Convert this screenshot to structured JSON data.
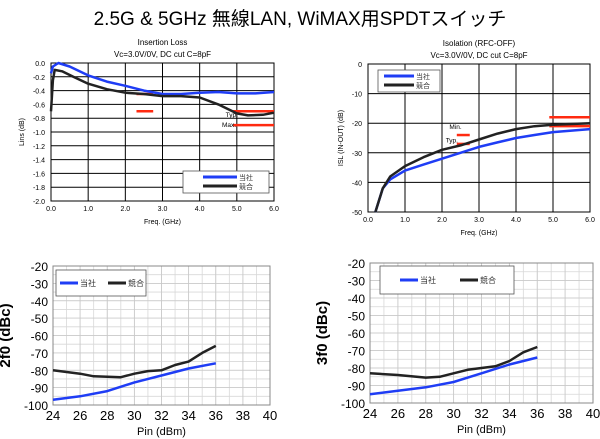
{
  "page_title": "2.5G & 5GHz 無線LAN, WiMAX用SPDTスイッチ",
  "chart_data": [
    {
      "type": "line",
      "title": "Insertion Loss",
      "subtitle": "Vc=3.0V/0V, DC cut C=8pF",
      "xlabel": "Freq. (GHz)",
      "ylabel": "Lins (dB)",
      "xlim": [
        0,
        6
      ],
      "ylim": [
        -2,
        0
      ],
      "xticks": [
        0,
        1,
        2,
        3,
        4,
        5,
        6
      ],
      "xtick_labels": [
        "0.0",
        "1.0",
        "2.0",
        "3.0",
        "4.0",
        "5.0",
        "6.0"
      ],
      "yticks": [
        0,
        -0.2,
        -0.4,
        -0.6,
        -0.8,
        -1,
        -1.2,
        -1.4,
        -1.6,
        -1.8,
        -2
      ],
      "ytick_labels": [
        "0.0",
        "-0.2",
        "-0.4",
        "-0.6",
        "-0.8",
        "-1.0",
        "-1.2",
        "-1.4",
        "-1.6",
        "-1.8",
        "-2.0"
      ],
      "grid": true,
      "legend": "bottom-right",
      "series": [
        {
          "name": "当社",
          "color": "#1f3df5",
          "x": [
            0,
            0.05,
            0.2,
            0.5,
            1,
            1.5,
            2,
            2.5,
            3,
            3.5,
            4,
            4.5,
            5,
            5.5,
            6
          ],
          "y": [
            -0.15,
            -0.05,
            0,
            -0.05,
            -0.18,
            -0.27,
            -0.33,
            -0.4,
            -0.45,
            -0.45,
            -0.43,
            -0.42,
            -0.44,
            -0.44,
            -0.42
          ]
        },
        {
          "name": "競合",
          "color": "#222222",
          "x": [
            0,
            0.05,
            0.1,
            0.3,
            0.6,
            1,
            1.5,
            2,
            2.5,
            3,
            3.5,
            4,
            4.5,
            5,
            5.3,
            5.7,
            6
          ],
          "y": [
            -0.7,
            -0.25,
            -0.1,
            -0.12,
            -0.2,
            -0.3,
            -0.38,
            -0.43,
            -0.45,
            -0.48,
            -0.48,
            -0.5,
            -0.6,
            -0.73,
            -0.76,
            -0.75,
            -0.72
          ]
        }
      ],
      "spec_lines": [
        {
          "x": [
            2.3,
            2.75
          ],
          "y": -0.45
        },
        {
          "x": [
            2.3,
            2.75
          ],
          "y": -0.7
        },
        {
          "x": [
            4.9,
            6
          ],
          "y": -0.7
        },
        {
          "x": [
            4.9,
            6
          ],
          "y": -0.9
        }
      ],
      "annotations": [
        {
          "text": "Typ.",
          "x": 4.7,
          "y": -0.78
        },
        {
          "text": "Max.",
          "x": 4.6,
          "y": -0.93
        }
      ]
    },
    {
      "type": "line",
      "title": "Isolation (RFC-OFF)",
      "subtitle": "Vc=3.0V/0V, DC cut C=8pF",
      "xlabel": "Freq. (GHz)",
      "ylabel": "ISL (IN-OUT) (dB)",
      "xlim": [
        0,
        6
      ],
      "ylim": [
        -50,
        0
      ],
      "xticks": [
        0,
        1,
        2,
        3,
        4,
        5,
        6
      ],
      "xtick_labels": [
        "0.0",
        "1.0",
        "2.0",
        "3.0",
        "4.0",
        "5.0",
        "6.0"
      ],
      "yticks": [
        0,
        -10,
        -20,
        -30,
        -40,
        -50
      ],
      "ytick_labels": [
        "0",
        "-10",
        "-20",
        "-30",
        "-40",
        "-50"
      ],
      "grid": true,
      "legend": "top-left",
      "series": [
        {
          "name": "当社",
          "color": "#1f3df5",
          "x": [
            0.2,
            0.4,
            0.6,
            1,
            1.5,
            2,
            2.5,
            3,
            3.5,
            4,
            4.5,
            5,
            5.5,
            6
          ],
          "y": [
            -50,
            -42,
            -39,
            -36,
            -34,
            -32,
            -30,
            -28,
            -26.5,
            -25,
            -24,
            -23,
            -22.5,
            -22
          ]
        },
        {
          "name": "競合",
          "color": "#222222",
          "x": [
            0.2,
            0.4,
            0.6,
            1,
            1.5,
            2,
            2.5,
            3,
            3.5,
            4,
            4.5,
            5,
            6
          ],
          "y": [
            -50,
            -42,
            -38,
            -34.5,
            -31.5,
            -29,
            -27.5,
            -25.5,
            -23.5,
            -22,
            -21,
            -20.5,
            -20
          ]
        }
      ],
      "spec_lines": [
        {
          "x": [
            2.4,
            2.75
          ],
          "y": -24
        },
        {
          "x": [
            2.4,
            2.75
          ],
          "y": -27
        },
        {
          "x": [
            4.9,
            6
          ],
          "y": -18
        },
        {
          "x": [
            4.9,
            6
          ],
          "y": -21
        }
      ],
      "annotations": [
        {
          "text": "Min.",
          "x": 2.2,
          "y": -22
        },
        {
          "text": "Typ.",
          "x": 2.1,
          "y": -26.5
        }
      ]
    },
    {
      "type": "line",
      "title": "",
      "xlabel": "Pin (dBm)",
      "ylabel": "2f0 (dBc)",
      "xlim": [
        24,
        40
      ],
      "ylim": [
        -100,
        -20
      ],
      "xticks": [
        24,
        26,
        28,
        30,
        32,
        34,
        36,
        38,
        40
      ],
      "xtick_labels": [
        "24",
        "26",
        "28",
        "30",
        "32",
        "34",
        "36",
        "38",
        "40"
      ],
      "yticks": [
        -20,
        -30,
        -40,
        -50,
        -60,
        -70,
        -80,
        -90,
        -100
      ],
      "ytick_labels": [
        "-20",
        "-30",
        "-40",
        "-50",
        "-60",
        "-70",
        "-80",
        "-90",
        "-100"
      ],
      "grid": true,
      "legend": "top-left",
      "series": [
        {
          "name": "当社",
          "color": "#1f3df5",
          "x": [
            24,
            26,
            28,
            30,
            32,
            34,
            36
          ],
          "y": [
            -97,
            -95,
            -92,
            -87,
            -83,
            -79,
            -76
          ]
        },
        {
          "name": "競合",
          "color": "#222222",
          "x": [
            24,
            26,
            27,
            29,
            30,
            31,
            32,
            33,
            34,
            35,
            36
          ],
          "y": [
            -80,
            -82,
            -83.5,
            -84,
            -82,
            -80.5,
            -80,
            -77,
            -75,
            -70,
            -66
          ]
        }
      ]
    },
    {
      "type": "line",
      "title": "",
      "xlabel": "Pin (dBm)",
      "ylabel": "3f0 (dBc)",
      "xlim": [
        24,
        40
      ],
      "ylim": [
        -100,
        -20
      ],
      "xticks": [
        24,
        26,
        28,
        30,
        32,
        34,
        36,
        38,
        40
      ],
      "xtick_labels": [
        "24",
        "26",
        "28",
        "30",
        "32",
        "34",
        "36",
        "38",
        "40"
      ],
      "yticks": [
        -20,
        -30,
        -40,
        -50,
        -60,
        -70,
        -80,
        -90,
        -100
      ],
      "ytick_labels": [
        "-20",
        "-30",
        "-40",
        "-50",
        "-60",
        "-70",
        "-80",
        "-90",
        "-100"
      ],
      "grid": true,
      "legend": "top",
      "series": [
        {
          "name": "当社",
          "color": "#1f3df5",
          "x": [
            24,
            26,
            28,
            30,
            32,
            34,
            36
          ],
          "y": [
            -95,
            -93,
            -91,
            -88,
            -83,
            -78,
            -74
          ]
        },
        {
          "name": "競合",
          "color": "#222222",
          "x": [
            24,
            26,
            28,
            29,
            30,
            31,
            32,
            33,
            34,
            35,
            36
          ],
          "y": [
            -83,
            -84,
            -85.5,
            -85,
            -83,
            -81,
            -80,
            -79,
            -76,
            -71,
            -68
          ]
        }
      ]
    }
  ],
  "spec_color": "#ff2a10"
}
